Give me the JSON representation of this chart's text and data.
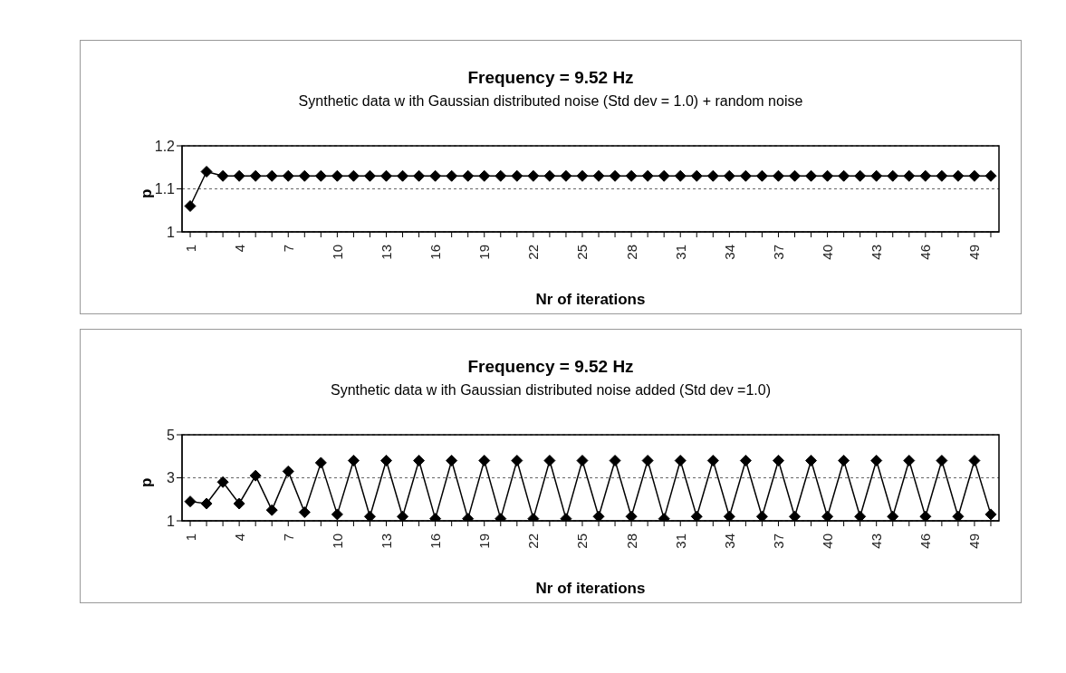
{
  "chart_data": [
    {
      "type": "line",
      "title": "Frequency = 9.52 Hz",
      "subtitle": "Synthetic data w ith Gaussian distributed noise (Std dev = 1.0) + random noise",
      "xlabel": "Nr of iterations",
      "ylabel": "p",
      "categories": [
        "1",
        null,
        null,
        "4",
        null,
        null,
        "7",
        null,
        null,
        "10",
        null,
        null,
        "13",
        null,
        null,
        "16",
        null,
        null,
        "19",
        null,
        null,
        "22",
        null,
        null,
        "25",
        null,
        null,
        "28",
        null,
        null,
        "31",
        null,
        null,
        "34",
        null,
        null,
        "37",
        null,
        null,
        "40",
        null,
        null,
        "43",
        null,
        null,
        "46",
        null,
        null,
        "49",
        null
      ],
      "values": [
        1.06,
        1.14,
        1.13,
        1.13,
        1.13,
        1.13,
        1.13,
        1.13,
        1.13,
        1.13,
        1.13,
        1.13,
        1.13,
        1.13,
        1.13,
        1.13,
        1.13,
        1.13,
        1.13,
        1.13,
        1.13,
        1.13,
        1.13,
        1.13,
        1.13,
        1.13,
        1.13,
        1.13,
        1.13,
        1.13,
        1.13,
        1.13,
        1.13,
        1.13,
        1.13,
        1.13,
        1.13,
        1.13,
        1.13,
        1.13,
        1.13,
        1.13,
        1.13,
        1.13,
        1.13,
        1.13,
        1.13,
        1.13,
        1.13,
        1.13
      ],
      "color": "#000000",
      "marker": "diamond",
      "line_style": "solid",
      "grid": "y",
      "legend": false,
      "ylim": [
        1,
        1.2
      ],
      "yticks": [
        1,
        1.1,
        1.2
      ]
    },
    {
      "type": "line",
      "title": "Frequency = 9.52 Hz",
      "subtitle": "Synthetic data w ith Gaussian distributed noise added (Std dev =1.0)",
      "xlabel": "Nr of iterations",
      "ylabel": "p",
      "categories": [
        "1",
        null,
        null,
        "4",
        null,
        null,
        "7",
        null,
        null,
        "10",
        null,
        null,
        "13",
        null,
        null,
        "16",
        null,
        null,
        "19",
        null,
        null,
        "22",
        null,
        null,
        "25",
        null,
        null,
        "28",
        null,
        null,
        "31",
        null,
        null,
        "34",
        null,
        null,
        "37",
        null,
        null,
        "40",
        null,
        null,
        "43",
        null,
        null,
        "46",
        null,
        null,
        "49",
        null
      ],
      "values": [
        1.9,
        1.8,
        2.8,
        1.8,
        3.1,
        1.5,
        3.3,
        1.4,
        3.7,
        1.3,
        3.8,
        1.2,
        3.8,
        1.2,
        3.8,
        1.1,
        3.8,
        1.1,
        3.8,
        1.1,
        3.8,
        1.1,
        3.8,
        1.1,
        3.8,
        1.2,
        3.8,
        1.2,
        3.8,
        1.1,
        3.8,
        1.2,
        3.8,
        1.2,
        3.8,
        1.2,
        3.8,
        1.2,
        3.8,
        1.2,
        3.8,
        1.2,
        3.8,
        1.2,
        3.8,
        1.2,
        3.8,
        1.2,
        3.8,
        1.3
      ],
      "color": "#000000",
      "marker": "diamond",
      "line_style": "solid",
      "grid": "y",
      "legend": false,
      "ylim": [
        1,
        5
      ],
      "yticks": [
        1,
        3,
        5
      ]
    }
  ]
}
